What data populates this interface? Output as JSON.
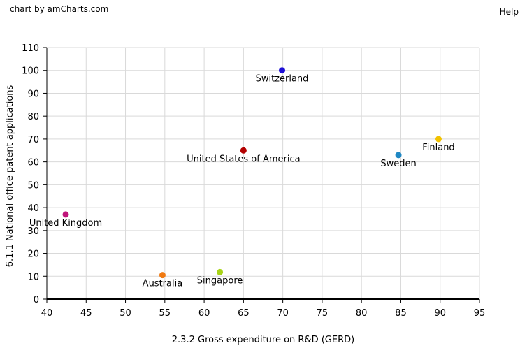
{
  "credit": "chart by amCharts.com",
  "help_label": "Help",
  "colors": {
    "grid": "#d9d9d9",
    "axis": "#000000",
    "background": "#ffffff"
  },
  "chart_data": {
    "type": "scatter",
    "xlabel": "2.3.2 Gross expenditure on R&D (GERD)",
    "ylabel": "6.1.1 National office patent applications",
    "xlim": [
      40,
      95
    ],
    "ylim": [
      0,
      110
    ],
    "xticks": [
      40,
      45,
      50,
      55,
      60,
      65,
      70,
      75,
      80,
      85,
      90,
      95
    ],
    "yticks": [
      0,
      10,
      20,
      30,
      40,
      50,
      60,
      70,
      80,
      90,
      100,
      110
    ],
    "grid": true,
    "points": [
      {
        "label": "Switzerland",
        "x": 69.9,
        "y": 100.0,
        "color": "#1d0fd6"
      },
      {
        "label": "United States of America",
        "x": 65.0,
        "y": 65.0,
        "color": "#b30000"
      },
      {
        "label": "Finland",
        "x": 89.8,
        "y": 70.0,
        "color": "#f2c200"
      },
      {
        "label": "Sweden",
        "x": 84.7,
        "y": 63.0,
        "color": "#1f88c4"
      },
      {
        "label": "United Kingdom",
        "x": 42.4,
        "y": 37.0,
        "color": "#c0147a"
      },
      {
        "label": "Australia",
        "x": 54.7,
        "y": 10.5,
        "color": "#f07a12"
      },
      {
        "label": "Singapore",
        "x": 62.0,
        "y": 11.8,
        "color": "#a8d418"
      }
    ]
  }
}
